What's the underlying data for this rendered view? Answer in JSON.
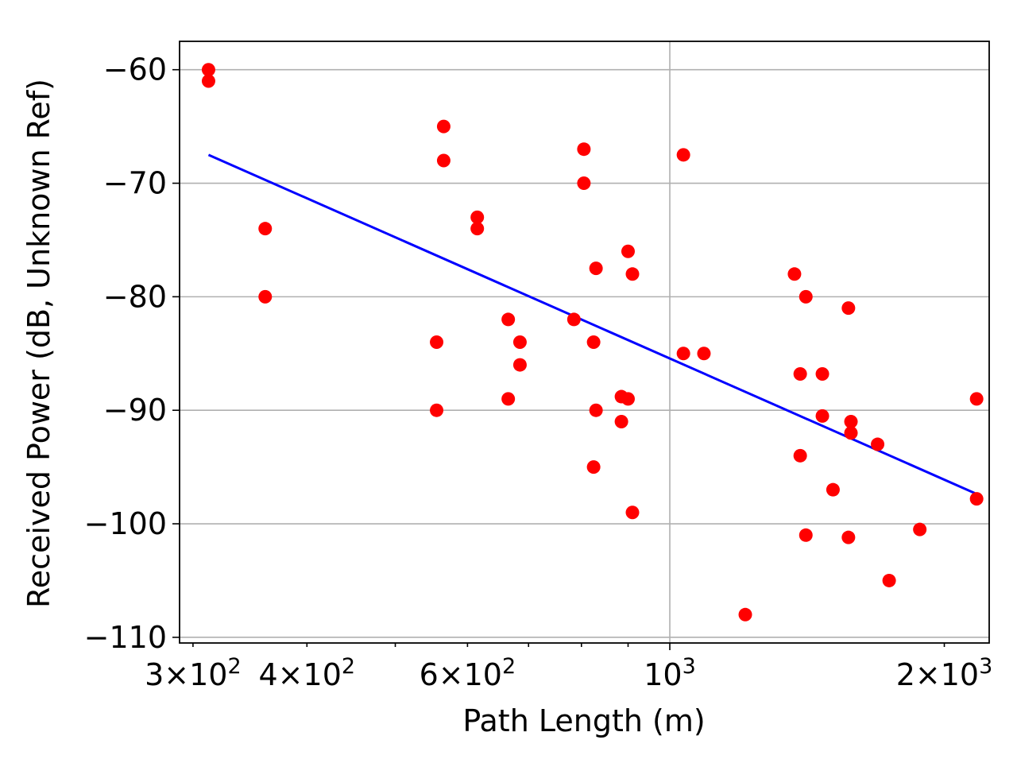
{
  "chart_data": {
    "type": "scatter",
    "title": "",
    "xlabel": "Path Length (m)",
    "ylabel": "Received Power (dB, Unknown Ref)",
    "xscale": "log",
    "xlim": [
      290,
      2240
    ],
    "ylim": [
      -110.5,
      -57.5
    ],
    "grid": true,
    "x_major_ticks": [
      {
        "value": 1000,
        "label": "10",
        "exp": "3"
      }
    ],
    "x_minor_labeled_ticks": [
      {
        "value": 300,
        "label": "3×10",
        "exp": "2"
      },
      {
        "value": 400,
        "label": "4×10",
        "exp": "2"
      },
      {
        "value": 600,
        "label": "6×10",
        "exp": "2"
      },
      {
        "value": 2000,
        "label": "2×10",
        "exp": "3"
      }
    ],
    "x_minor_ticks": [
      500,
      700,
      800,
      900
    ],
    "y_ticks": [
      {
        "value": -60,
        "label": "−60"
      },
      {
        "value": -70,
        "label": "−70"
      },
      {
        "value": -80,
        "label": "−80"
      },
      {
        "value": -90,
        "label": "−90"
      },
      {
        "value": -100,
        "label": "−100"
      },
      {
        "value": -110,
        "label": "−110"
      }
    ],
    "series": [
      {
        "kind": "scatter",
        "color": "#ff0000",
        "points": [
          [
            312,
            -60
          ],
          [
            312,
            -61
          ],
          [
            360,
            -74
          ],
          [
            360,
            -80
          ],
          [
            555,
            -84
          ],
          [
            555,
            -90
          ],
          [
            565,
            -65
          ],
          [
            565,
            -68
          ],
          [
            615,
            -73
          ],
          [
            615,
            -74
          ],
          [
            665,
            -82
          ],
          [
            665,
            -89
          ],
          [
            685,
            -84
          ],
          [
            685,
            -86
          ],
          [
            785,
            -82
          ],
          [
            805,
            -67
          ],
          [
            805,
            -70
          ],
          [
            825,
            -84
          ],
          [
            825,
            -95
          ],
          [
            830,
            -77.5
          ],
          [
            830,
            -90
          ],
          [
            885,
            -88.8
          ],
          [
            885,
            -91
          ],
          [
            900,
            -76
          ],
          [
            900,
            -89
          ],
          [
            910,
            -78
          ],
          [
            910,
            -99
          ],
          [
            1035,
            -67.5
          ],
          [
            1035,
            -85
          ],
          [
            1090,
            -85
          ],
          [
            1210,
            -108
          ],
          [
            1370,
            -78
          ],
          [
            1390,
            -86.8
          ],
          [
            1390,
            -94
          ],
          [
            1410,
            -80
          ],
          [
            1410,
            -101
          ],
          [
            1470,
            -86.8
          ],
          [
            1470,
            -90.5
          ],
          [
            1510,
            -97
          ],
          [
            1570,
            -81
          ],
          [
            1570,
            -101.2
          ],
          [
            1580,
            -91
          ],
          [
            1580,
            -92
          ],
          [
            1690,
            -93
          ],
          [
            1740,
            -105
          ],
          [
            1880,
            -100.5
          ],
          [
            2170,
            -89
          ],
          [
            2170,
            -97.8
          ]
        ]
      },
      {
        "kind": "fit-line",
        "color": "#0000ff",
        "points": [
          [
            312,
            -67.5
          ],
          [
            2160,
            -97.3
          ]
        ]
      }
    ]
  }
}
